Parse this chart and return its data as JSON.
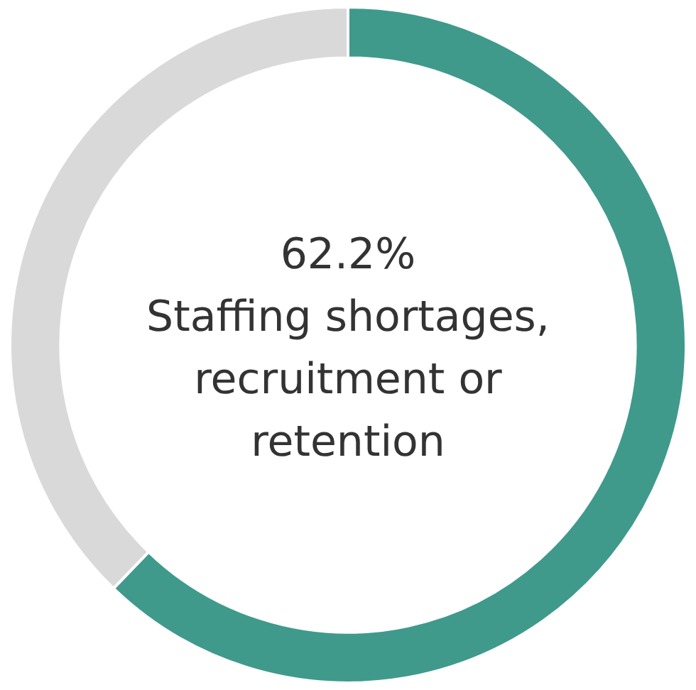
{
  "chart_data": {
    "type": "donut",
    "categories": [
      "Staffing shortages, recruitment or retention",
      null
    ],
    "values": [
      62.2,
      37.8
    ],
    "colors": [
      "#3f9a8c",
      "#d9d9d9"
    ],
    "value_labels": [
      "62.2%",
      null
    ],
    "legend": false
  }
}
